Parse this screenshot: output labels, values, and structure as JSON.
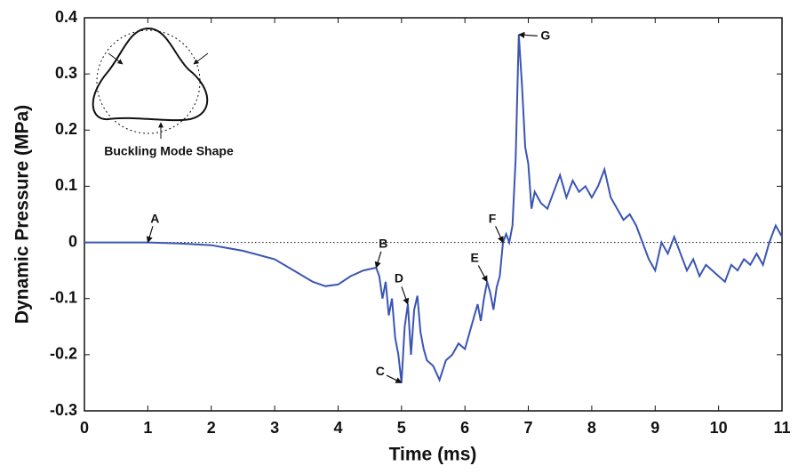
{
  "chart_data": {
    "type": "line",
    "x_label": "Time (ms)",
    "y_label": "Dynamic Pressure (MPa)",
    "inset_label": "Buckling Mode Shape",
    "xlim": [
      0,
      11
    ],
    "xticks": [
      0,
      1,
      2,
      3,
      4,
      5,
      6,
      7,
      8,
      9,
      10,
      11
    ],
    "ylim": [
      -0.3,
      0.4
    ],
    "yticks": [
      -0.3,
      -0.2,
      -0.1,
      0,
      0.1,
      0.2,
      0.3,
      0.4
    ],
    "reference_y": 0,
    "series": [
      {
        "color": "#3a55b4",
        "x": [
          0,
          0.5,
          1,
          1.5,
          2,
          2.5,
          3,
          3.3,
          3.6,
          3.8,
          4.0,
          4.2,
          4.4,
          4.6,
          4.65,
          4.7,
          4.75,
          4.8,
          4.85,
          4.9,
          4.95,
          5.0,
          5.05,
          5.1,
          5.15,
          5.2,
          5.25,
          5.3,
          5.35,
          5.4,
          5.5,
          5.6,
          5.7,
          5.8,
          5.9,
          6.0,
          6.1,
          6.2,
          6.25,
          6.3,
          6.35,
          6.4,
          6.45,
          6.5,
          6.55,
          6.6,
          6.65,
          6.7,
          6.75,
          6.8,
          6.85,
          6.9,
          6.95,
          7.0,
          7.05,
          7.1,
          7.2,
          7.3,
          7.4,
          7.5,
          7.6,
          7.7,
          7.8,
          7.9,
          8.0,
          8.1,
          8.2,
          8.3,
          8.4,
          8.5,
          8.6,
          8.7,
          8.8,
          8.9,
          9.0,
          9.1,
          9.2,
          9.3,
          9.4,
          9.5,
          9.6,
          9.7,
          9.8,
          9.9,
          10.0,
          10.1,
          10.2,
          10.3,
          10.4,
          10.5,
          10.6,
          10.7,
          10.8,
          10.9,
          11.0
        ],
        "values": [
          0,
          0,
          0,
          -0.002,
          -0.005,
          -0.015,
          -0.03,
          -0.05,
          -0.07,
          -0.078,
          -0.075,
          -0.06,
          -0.05,
          -0.045,
          -0.06,
          -0.1,
          -0.07,
          -0.13,
          -0.1,
          -0.17,
          -0.2,
          -0.25,
          -0.15,
          -0.11,
          -0.2,
          -0.12,
          -0.095,
          -0.16,
          -0.19,
          -0.21,
          -0.22,
          -0.245,
          -0.21,
          -0.2,
          -0.18,
          -0.19,
          -0.15,
          -0.11,
          -0.14,
          -0.1,
          -0.07,
          -0.09,
          -0.12,
          -0.08,
          -0.06,
          0.0,
          0.015,
          0.0,
          0.03,
          0.15,
          0.37,
          0.28,
          0.17,
          0.14,
          0.06,
          0.09,
          0.07,
          0.06,
          0.09,
          0.12,
          0.08,
          0.11,
          0.09,
          0.1,
          0.08,
          0.1,
          0.13,
          0.08,
          0.06,
          0.04,
          0.05,
          0.03,
          0.0,
          -0.03,
          -0.05,
          0.0,
          -0.02,
          0.01,
          -0.02,
          -0.05,
          -0.03,
          -0.06,
          -0.04,
          -0.05,
          -0.06,
          -0.07,
          -0.04,
          -0.05,
          -0.03,
          -0.04,
          -0.02,
          -0.04,
          0.0,
          0.03,
          0.01
        ]
      }
    ],
    "annotations": [
      {
        "text": "A",
        "x": 1,
        "y": 0
      },
      {
        "text": "B",
        "x": 4.6,
        "y": -0.045
      },
      {
        "text": "C",
        "x": 5.0,
        "y": -0.25
      },
      {
        "text": "D",
        "x": 5.1,
        "y": -0.11
      },
      {
        "text": "E",
        "x": 6.35,
        "y": -0.07
      },
      {
        "text": "F",
        "x": 6.6,
        "y": 0.0
      },
      {
        "text": "G",
        "x": 6.85,
        "y": 0.37
      }
    ]
  }
}
